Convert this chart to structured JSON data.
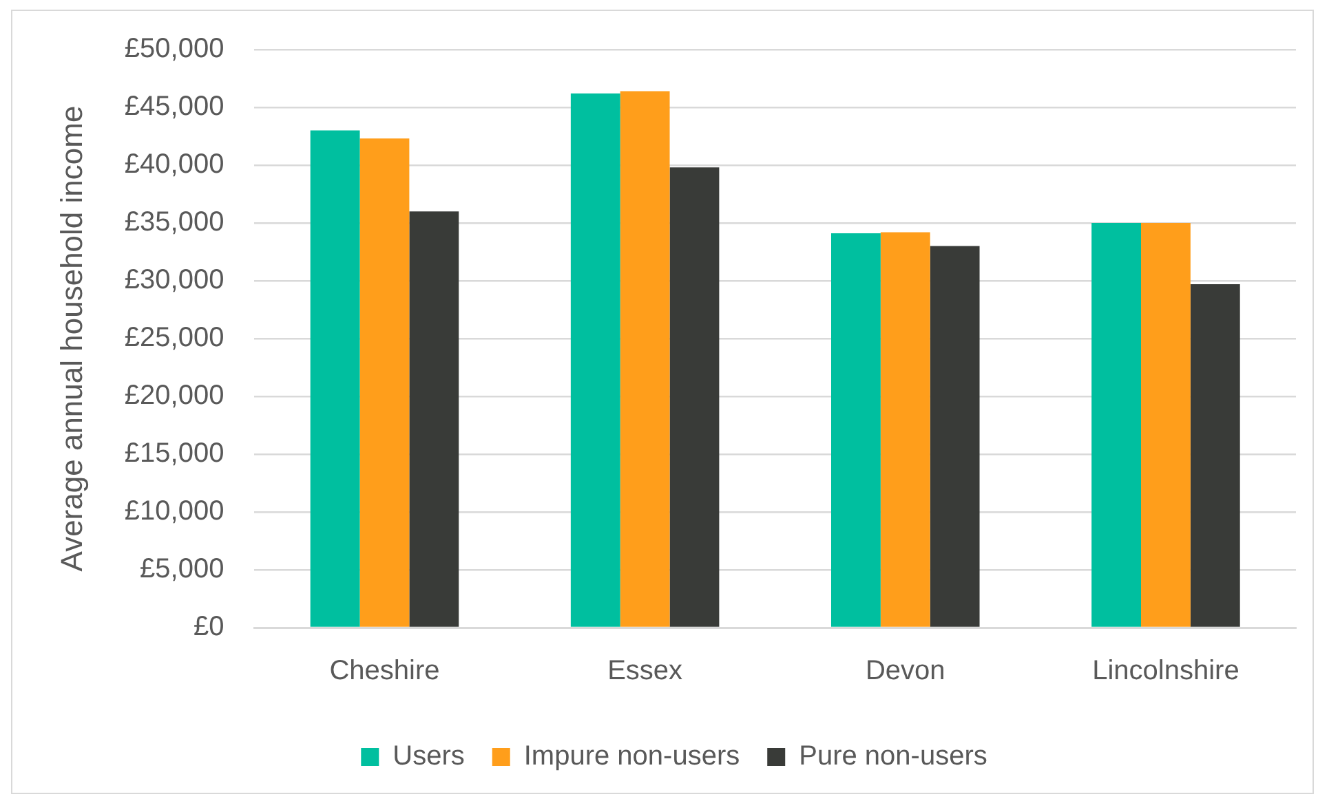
{
  "chart_data": {
    "type": "bar",
    "ylabel": "Average annual household income",
    "categories": [
      "Cheshire",
      "Essex",
      "Devon",
      "Lincolnshire"
    ],
    "series": [
      {
        "name": "Users",
        "color": "#00bf9f",
        "values": [
          43000,
          46200,
          34100,
          35000
        ]
      },
      {
        "name": "Impure non-users",
        "color": "#ff9e1b",
        "values": [
          42300,
          46400,
          34200,
          35000
        ]
      },
      {
        "name": "Pure non-users",
        "color": "#393b38",
        "values": [
          36000,
          39800,
          33000,
          29700
        ]
      }
    ],
    "ylim": [
      0,
      50000
    ],
    "yticks": [
      {
        "value": 0,
        "label": "£0"
      },
      {
        "value": 5000,
        "label": "£5,000"
      },
      {
        "value": 10000,
        "label": "£10,000"
      },
      {
        "value": 15000,
        "label": "£15,000"
      },
      {
        "value": 20000,
        "label": "£20,000"
      },
      {
        "value": 25000,
        "label": "£25,000"
      },
      {
        "value": 30000,
        "label": "£30,000"
      },
      {
        "value": 35000,
        "label": "£35,000"
      },
      {
        "value": 40000,
        "label": "£40,000"
      },
      {
        "value": 45000,
        "label": "£45,000"
      },
      {
        "value": 50000,
        "label": "£50,000"
      }
    ],
    "grid": "y",
    "legend": "bottom"
  }
}
